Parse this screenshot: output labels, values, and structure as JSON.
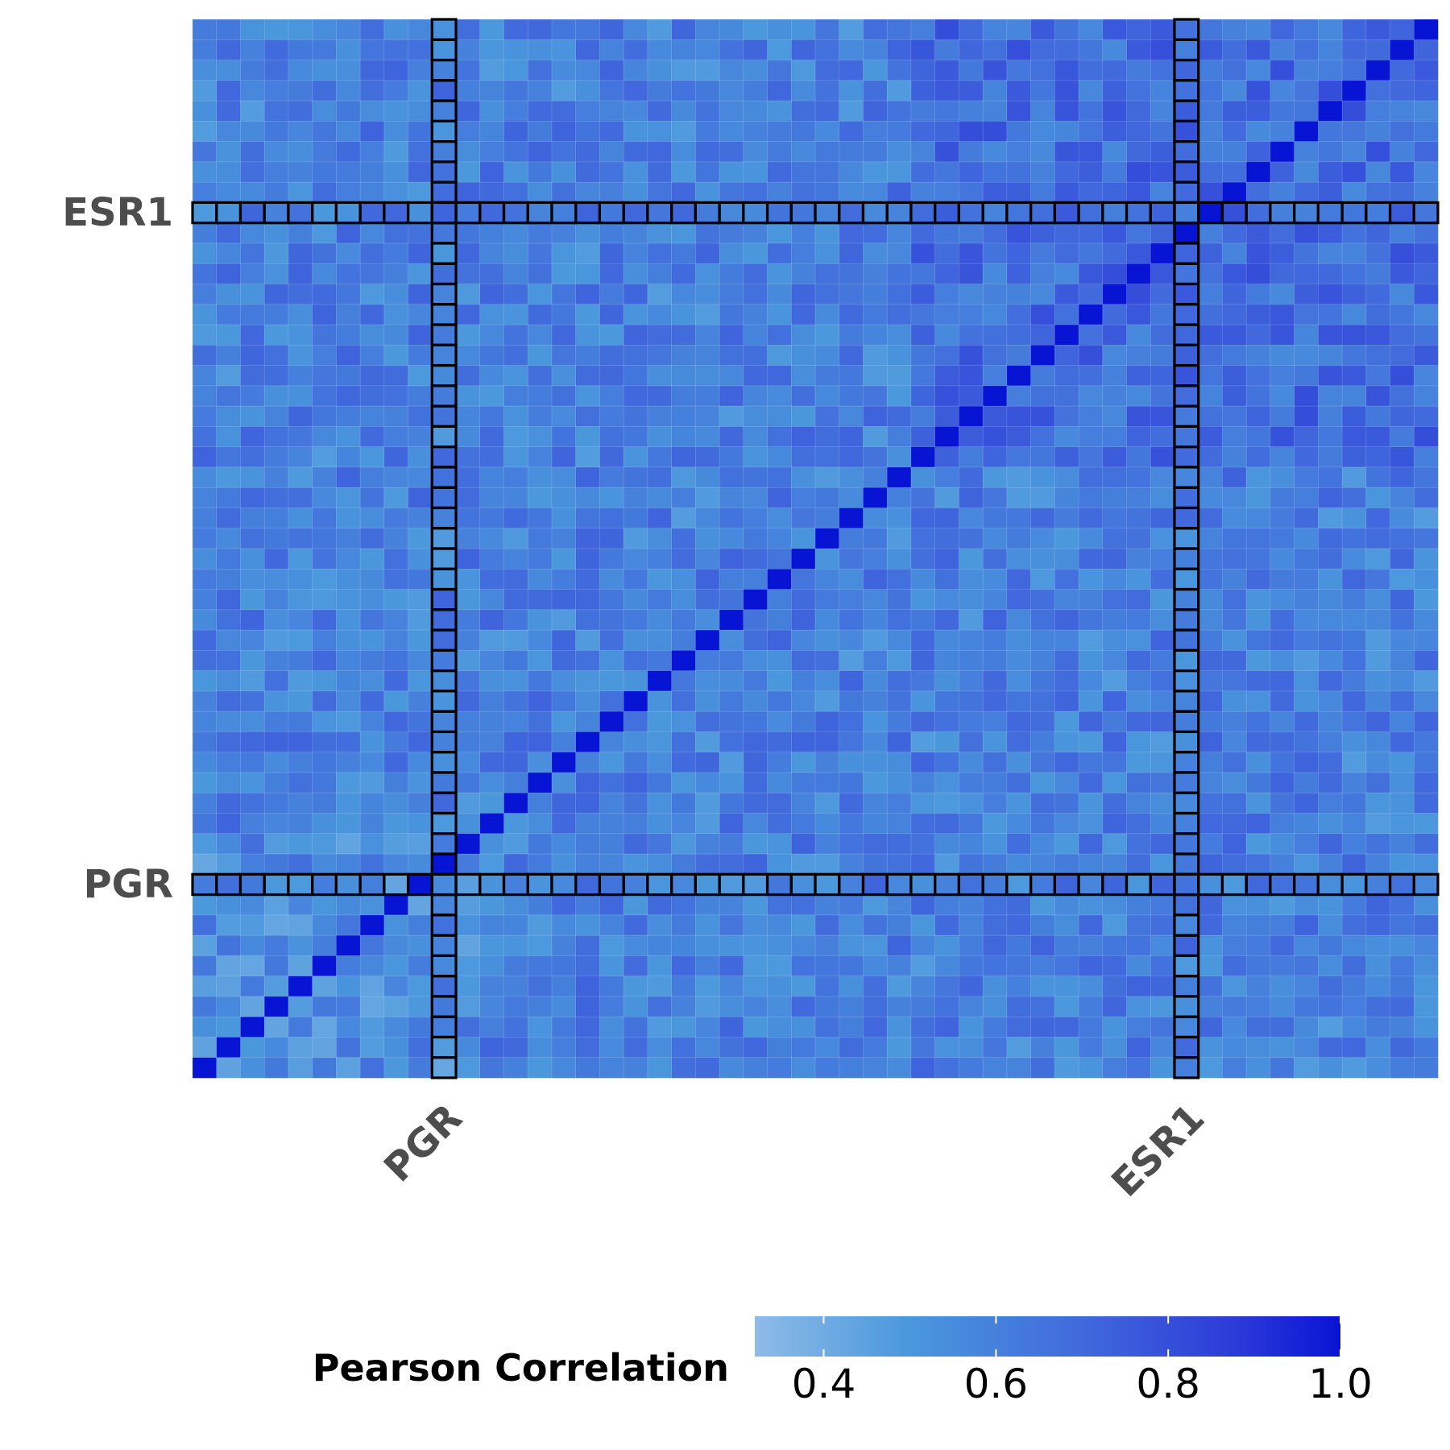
{
  "chart_data": {
    "type": "heatmap",
    "title": "",
    "n": 52,
    "row_labels": [
      {
        "label": "ESR1",
        "index_from_top": 9
      },
      {
        "label": "PGR",
        "index_from_top": 42
      }
    ],
    "col_labels": [
      {
        "label": "PGR",
        "index": 10
      },
      {
        "label": "ESR1",
        "index": 41
      }
    ],
    "highlighted_rows": [
      "ESR1",
      "PGR"
    ],
    "highlighted_cols": [
      "PGR",
      "ESR1"
    ],
    "diagonal_value": 1.0,
    "typical_value_range": [
      0.35,
      0.85
    ],
    "colorscale": {
      "stops": [
        {
          "value": 0.32,
          "color": "#8fbbe8"
        },
        {
          "value": 0.5,
          "color": "#4a97dc"
        },
        {
          "value": 0.7,
          "color": "#4169dc"
        },
        {
          "value": 0.88,
          "color": "#2c3ad8"
        },
        {
          "value": 1.0,
          "color": "#0814d4"
        }
      ]
    },
    "legend": {
      "title": "Pearson Correlation",
      "position": "bottom",
      "range": [
        0.32,
        1.0
      ],
      "ticks": [
        0.4,
        0.6,
        0.8,
        1.0
      ],
      "tick_labels": [
        "0.4",
        "0.6",
        "0.8",
        "1.0"
      ]
    }
  }
}
